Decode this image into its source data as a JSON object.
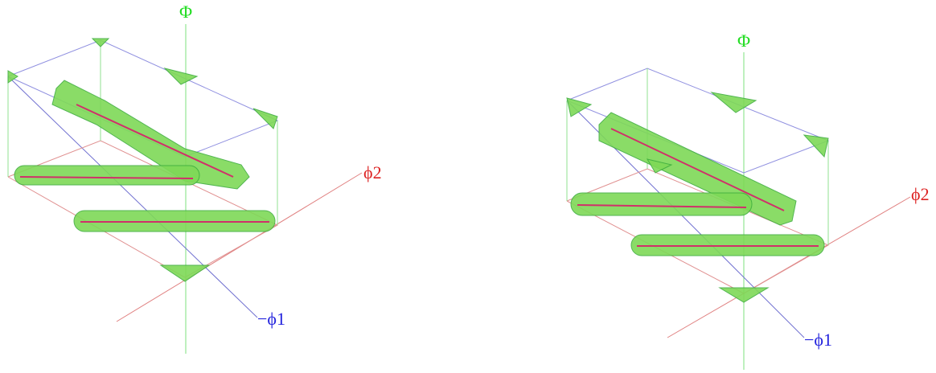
{
  "panels": [
    {
      "axis_vertical": "Φ",
      "axis_right": "ϕ2",
      "axis_front": "−ϕ1"
    },
    {
      "axis_vertical": "Φ",
      "axis_right": "ϕ2",
      "axis_front": "−ϕ1"
    }
  ]
}
